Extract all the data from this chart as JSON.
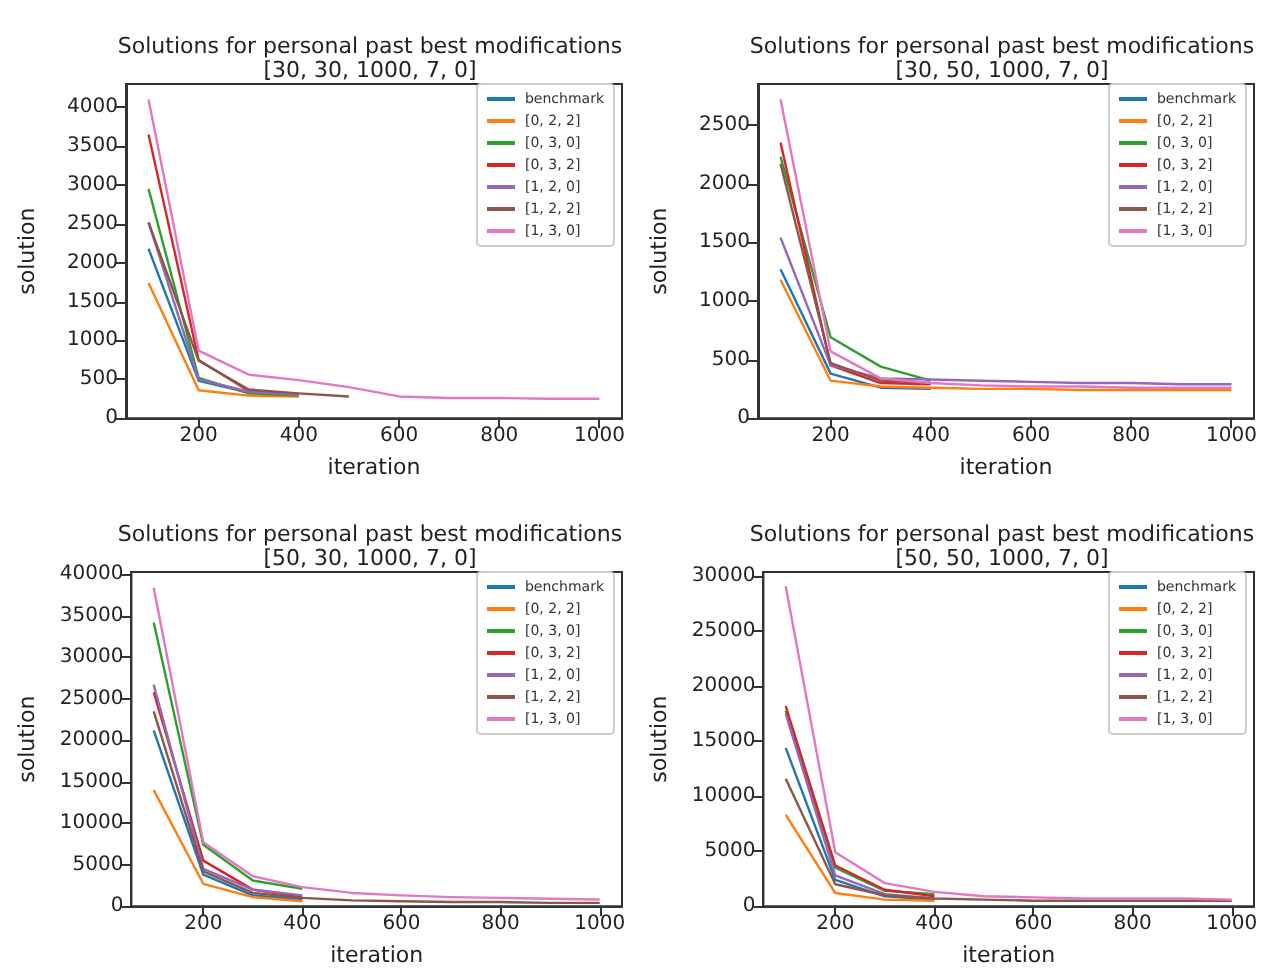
{
  "chart_data": [
    {
      "type": "line",
      "title": "Solutions for personal past best modifications\n[30, 30, 1000, 7, 0]",
      "xlabel": "iteration",
      "ylabel": "solution",
      "x": [
        100,
        200,
        300,
        400,
        500,
        600,
        700,
        800,
        900,
        1000
      ],
      "xlim": [
        55,
        1045
      ],
      "xticks": [
        200,
        400,
        600,
        800,
        1000
      ],
      "ylim": [
        0,
        4300
      ],
      "yticks": [
        0,
        500,
        1000,
        1500,
        2000,
        2500,
        3000,
        3500,
        4000
      ],
      "grid": false,
      "legend": "top right",
      "marker": "none",
      "line_style": "solid",
      "series": [
        {
          "name": "benchmark",
          "color": "#1f77b4",
          "values": [
            2180,
            480,
            330,
            null,
            null,
            null,
            null,
            null,
            null,
            null
          ]
        },
        {
          "name": "[0, 2, 2]",
          "color": "#ff7f0e",
          "values": [
            1740,
            360,
            290,
            280,
            null,
            null,
            null,
            null,
            null,
            null
          ]
        },
        {
          "name": "[0, 3, 0]",
          "color": "#2ca02c",
          "values": [
            2950,
            520,
            320,
            290,
            null,
            null,
            null,
            null,
            null,
            null
          ]
        },
        {
          "name": "[0, 3, 2]",
          "color": "#d62728",
          "values": [
            3650,
            750,
            350,
            300,
            null,
            null,
            null,
            null,
            null,
            null
          ]
        },
        {
          "name": "[1, 2, 0]",
          "color": "#9467bd",
          "values": [
            2520,
            500,
            340,
            300,
            null,
            null,
            null,
            null,
            null,
            null
          ]
        },
        {
          "name": "[1, 2, 2]",
          "color": "#8c564b",
          "values": [
            2520,
            740,
            370,
            320,
            280,
            null,
            null,
            null,
            null,
            null
          ]
        },
        {
          "name": "[1, 3, 0]",
          "color": "#e377c2",
          "values": [
            4100,
            870,
            560,
            490,
            400,
            280,
            260,
            260,
            250,
            250
          ]
        }
      ]
    },
    {
      "type": "line",
      "title": "Solutions for personal past best modifications\n[30, 50, 1000, 7, 0]",
      "xlabel": "iteration",
      "ylabel": "solution",
      "x": [
        100,
        200,
        300,
        400,
        500,
        600,
        700,
        800,
        900,
        1000
      ],
      "xlim": [
        55,
        1045
      ],
      "xticks": [
        200,
        400,
        600,
        800,
        1000
      ],
      "ylim": [
        0,
        2850
      ],
      "yticks": [
        0,
        500,
        1000,
        1500,
        2000,
        2500
      ],
      "grid": false,
      "legend": "top right",
      "marker": "none",
      "line_style": "solid",
      "series": [
        {
          "name": "benchmark",
          "color": "#1f77b4",
          "values": [
            1270,
            380,
            260,
            250,
            null,
            null,
            null,
            null,
            null,
            null
          ]
        },
        {
          "name": "[0, 2, 2]",
          "color": "#ff7f0e",
          "values": [
            1180,
            320,
            270,
            260,
            250,
            250,
            240,
            240,
            240,
            240
          ]
        },
        {
          "name": "[0, 3, 0]",
          "color": "#2ca02c",
          "values": [
            2230,
            690,
            440,
            320,
            null,
            null,
            null,
            null,
            null,
            null
          ]
        },
        {
          "name": "[0, 3, 2]",
          "color": "#d62728",
          "values": [
            2350,
            450,
            300,
            290,
            null,
            null,
            null,
            null,
            null,
            null
          ]
        },
        {
          "name": "[1, 2, 0]",
          "color": "#9467bd",
          "values": [
            1540,
            450,
            340,
            330,
            320,
            310,
            300,
            300,
            290,
            290
          ]
        },
        {
          "name": "[1, 2, 2]",
          "color": "#8c564b",
          "values": [
            2170,
            470,
            320,
            300,
            null,
            null,
            null,
            null,
            null,
            null
          ]
        },
        {
          "name": "[1, 3, 0]",
          "color": "#e377c2",
          "values": [
            2720,
            570,
            340,
            300,
            280,
            270,
            270,
            260,
            260,
            260
          ]
        }
      ]
    },
    {
      "type": "line",
      "title": "Solutions for personal past best modifications\n[50, 30, 1000, 7, 0]",
      "xlabel": "iteration",
      "ylabel": "solution",
      "x": [
        100,
        200,
        300,
        400,
        500,
        600,
        700,
        800,
        900,
        1000
      ],
      "xlim": [
        55,
        1045
      ],
      "xticks": [
        200,
        400,
        600,
        800,
        1000
      ],
      "ylim": [
        0,
        40300
      ],
      "yticks": [
        0,
        5000,
        10000,
        15000,
        20000,
        25000,
        30000,
        35000,
        40000
      ],
      "grid": false,
      "legend": "top right",
      "marker": "none",
      "line_style": "solid",
      "series": [
        {
          "name": "benchmark",
          "color": "#1f77b4",
          "values": [
            21200,
            3800,
            1300,
            800,
            null,
            null,
            null,
            null,
            null,
            null
          ]
        },
        {
          "name": "[0, 2, 2]",
          "color": "#ff7f0e",
          "values": [
            14000,
            2700,
            1100,
            600,
            null,
            null,
            null,
            null,
            null,
            null
          ]
        },
        {
          "name": "[0, 3, 0]",
          "color": "#2ca02c",
          "values": [
            34200,
            7400,
            3100,
            2100,
            null,
            null,
            null,
            null,
            null,
            null
          ]
        },
        {
          "name": "[0, 3, 2]",
          "color": "#d62728",
          "values": [
            25800,
            5500,
            2000,
            1100,
            null,
            null,
            null,
            null,
            null,
            null
          ]
        },
        {
          "name": "[1, 2, 0]",
          "color": "#9467bd",
          "values": [
            26700,
            4500,
            2000,
            1300,
            null,
            null,
            null,
            null,
            null,
            null
          ]
        },
        {
          "name": "[1, 2, 2]",
          "color": "#8c564b",
          "values": [
            23500,
            4200,
            1600,
            1000,
            700,
            600,
            500,
            500,
            400,
            400
          ]
        },
        {
          "name": "[1, 3, 0]",
          "color": "#e377c2",
          "values": [
            38400,
            7700,
            3600,
            2300,
            1600,
            1300,
            1100,
            1000,
            900,
            800
          ]
        }
      ]
    },
    {
      "type": "line",
      "title": "Solutions for personal past best modifications\n[50, 50, 1000, 7, 0]",
      "xlabel": "iteration",
      "ylabel": "solution",
      "x": [
        100,
        200,
        300,
        400,
        500,
        600,
        700,
        800,
        900,
        1000
      ],
      "xlim": [
        55,
        1045
      ],
      "xticks": [
        200,
        400,
        600,
        800,
        1000
      ],
      "ylim": [
        0,
        30400
      ],
      "yticks": [
        0,
        5000,
        10000,
        15000,
        20000,
        25000,
        30000
      ],
      "grid": false,
      "legend": "top right",
      "marker": "none",
      "line_style": "solid",
      "series": [
        {
          "name": "benchmark",
          "color": "#1f77b4",
          "values": [
            14400,
            2400,
            900,
            600,
            null,
            null,
            null,
            null,
            null,
            null
          ]
        },
        {
          "name": "[0, 2, 2]",
          "color": "#ff7f0e",
          "values": [
            8300,
            1200,
            600,
            500,
            null,
            null,
            null,
            null,
            null,
            null
          ]
        },
        {
          "name": "[0, 3, 0]",
          "color": "#2ca02c",
          "values": [
            17800,
            3500,
            1400,
            1100,
            null,
            null,
            null,
            null,
            null,
            null
          ]
        },
        {
          "name": "[0, 3, 2]",
          "color": "#d62728",
          "values": [
            18200,
            3700,
            1500,
            900,
            null,
            null,
            null,
            null,
            null,
            null
          ]
        },
        {
          "name": "[1, 2, 0]",
          "color": "#9467bd",
          "values": [
            17500,
            2800,
            1100,
            700,
            null,
            null,
            null,
            null,
            null,
            null
          ]
        },
        {
          "name": "[1, 2, 2]",
          "color": "#8c564b",
          "values": [
            11600,
            2000,
            1000,
            700,
            600,
            500,
            500,
            500,
            500,
            500
          ]
        },
        {
          "name": "[1, 3, 0]",
          "color": "#e377c2",
          "values": [
            29100,
            4900,
            2100,
            1300,
            900,
            800,
            700,
            700,
            700,
            600
          ]
        }
      ]
    }
  ]
}
